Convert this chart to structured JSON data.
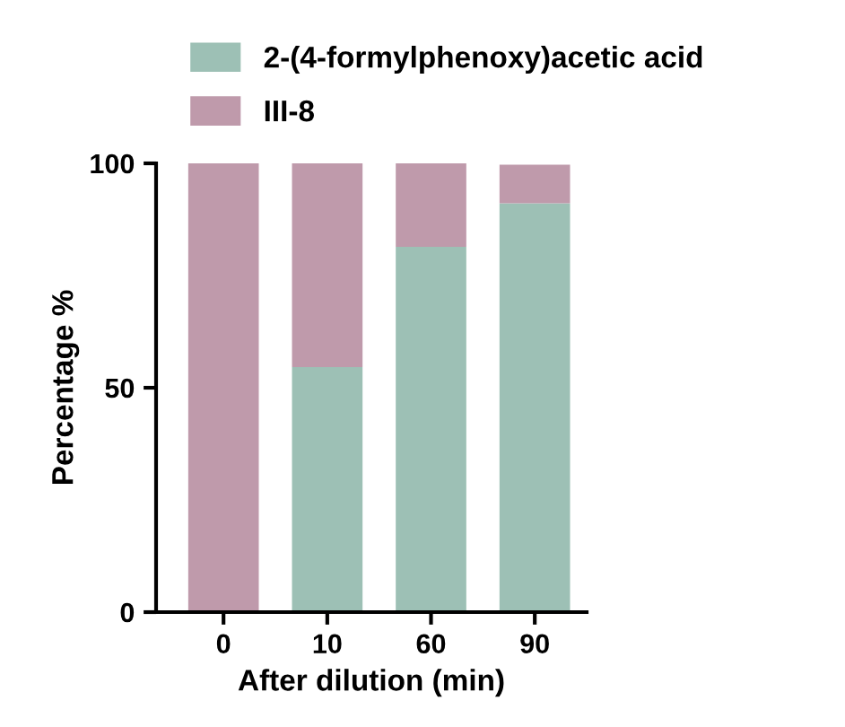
{
  "chart_data": {
    "type": "bar",
    "stacked": true,
    "xlabel": "After dilution (min)",
    "ylabel": "Percentage %",
    "categories": [
      "0",
      "10",
      "60",
      "90"
    ],
    "series": [
      {
        "name": "2-(4-formylphenoxy)acetic acid",
        "color": "#9dc0b5",
        "values": [
          0,
          54.6,
          81.4,
          91.1
        ]
      },
      {
        "name": "III-8",
        "color": "#bf9aab",
        "values": [
          100,
          45.4,
          18.6,
          8.6
        ]
      }
    ],
    "ylim": [
      0,
      100
    ],
    "yticks": [
      0,
      50,
      100
    ],
    "grid": false,
    "legend": "top"
  }
}
